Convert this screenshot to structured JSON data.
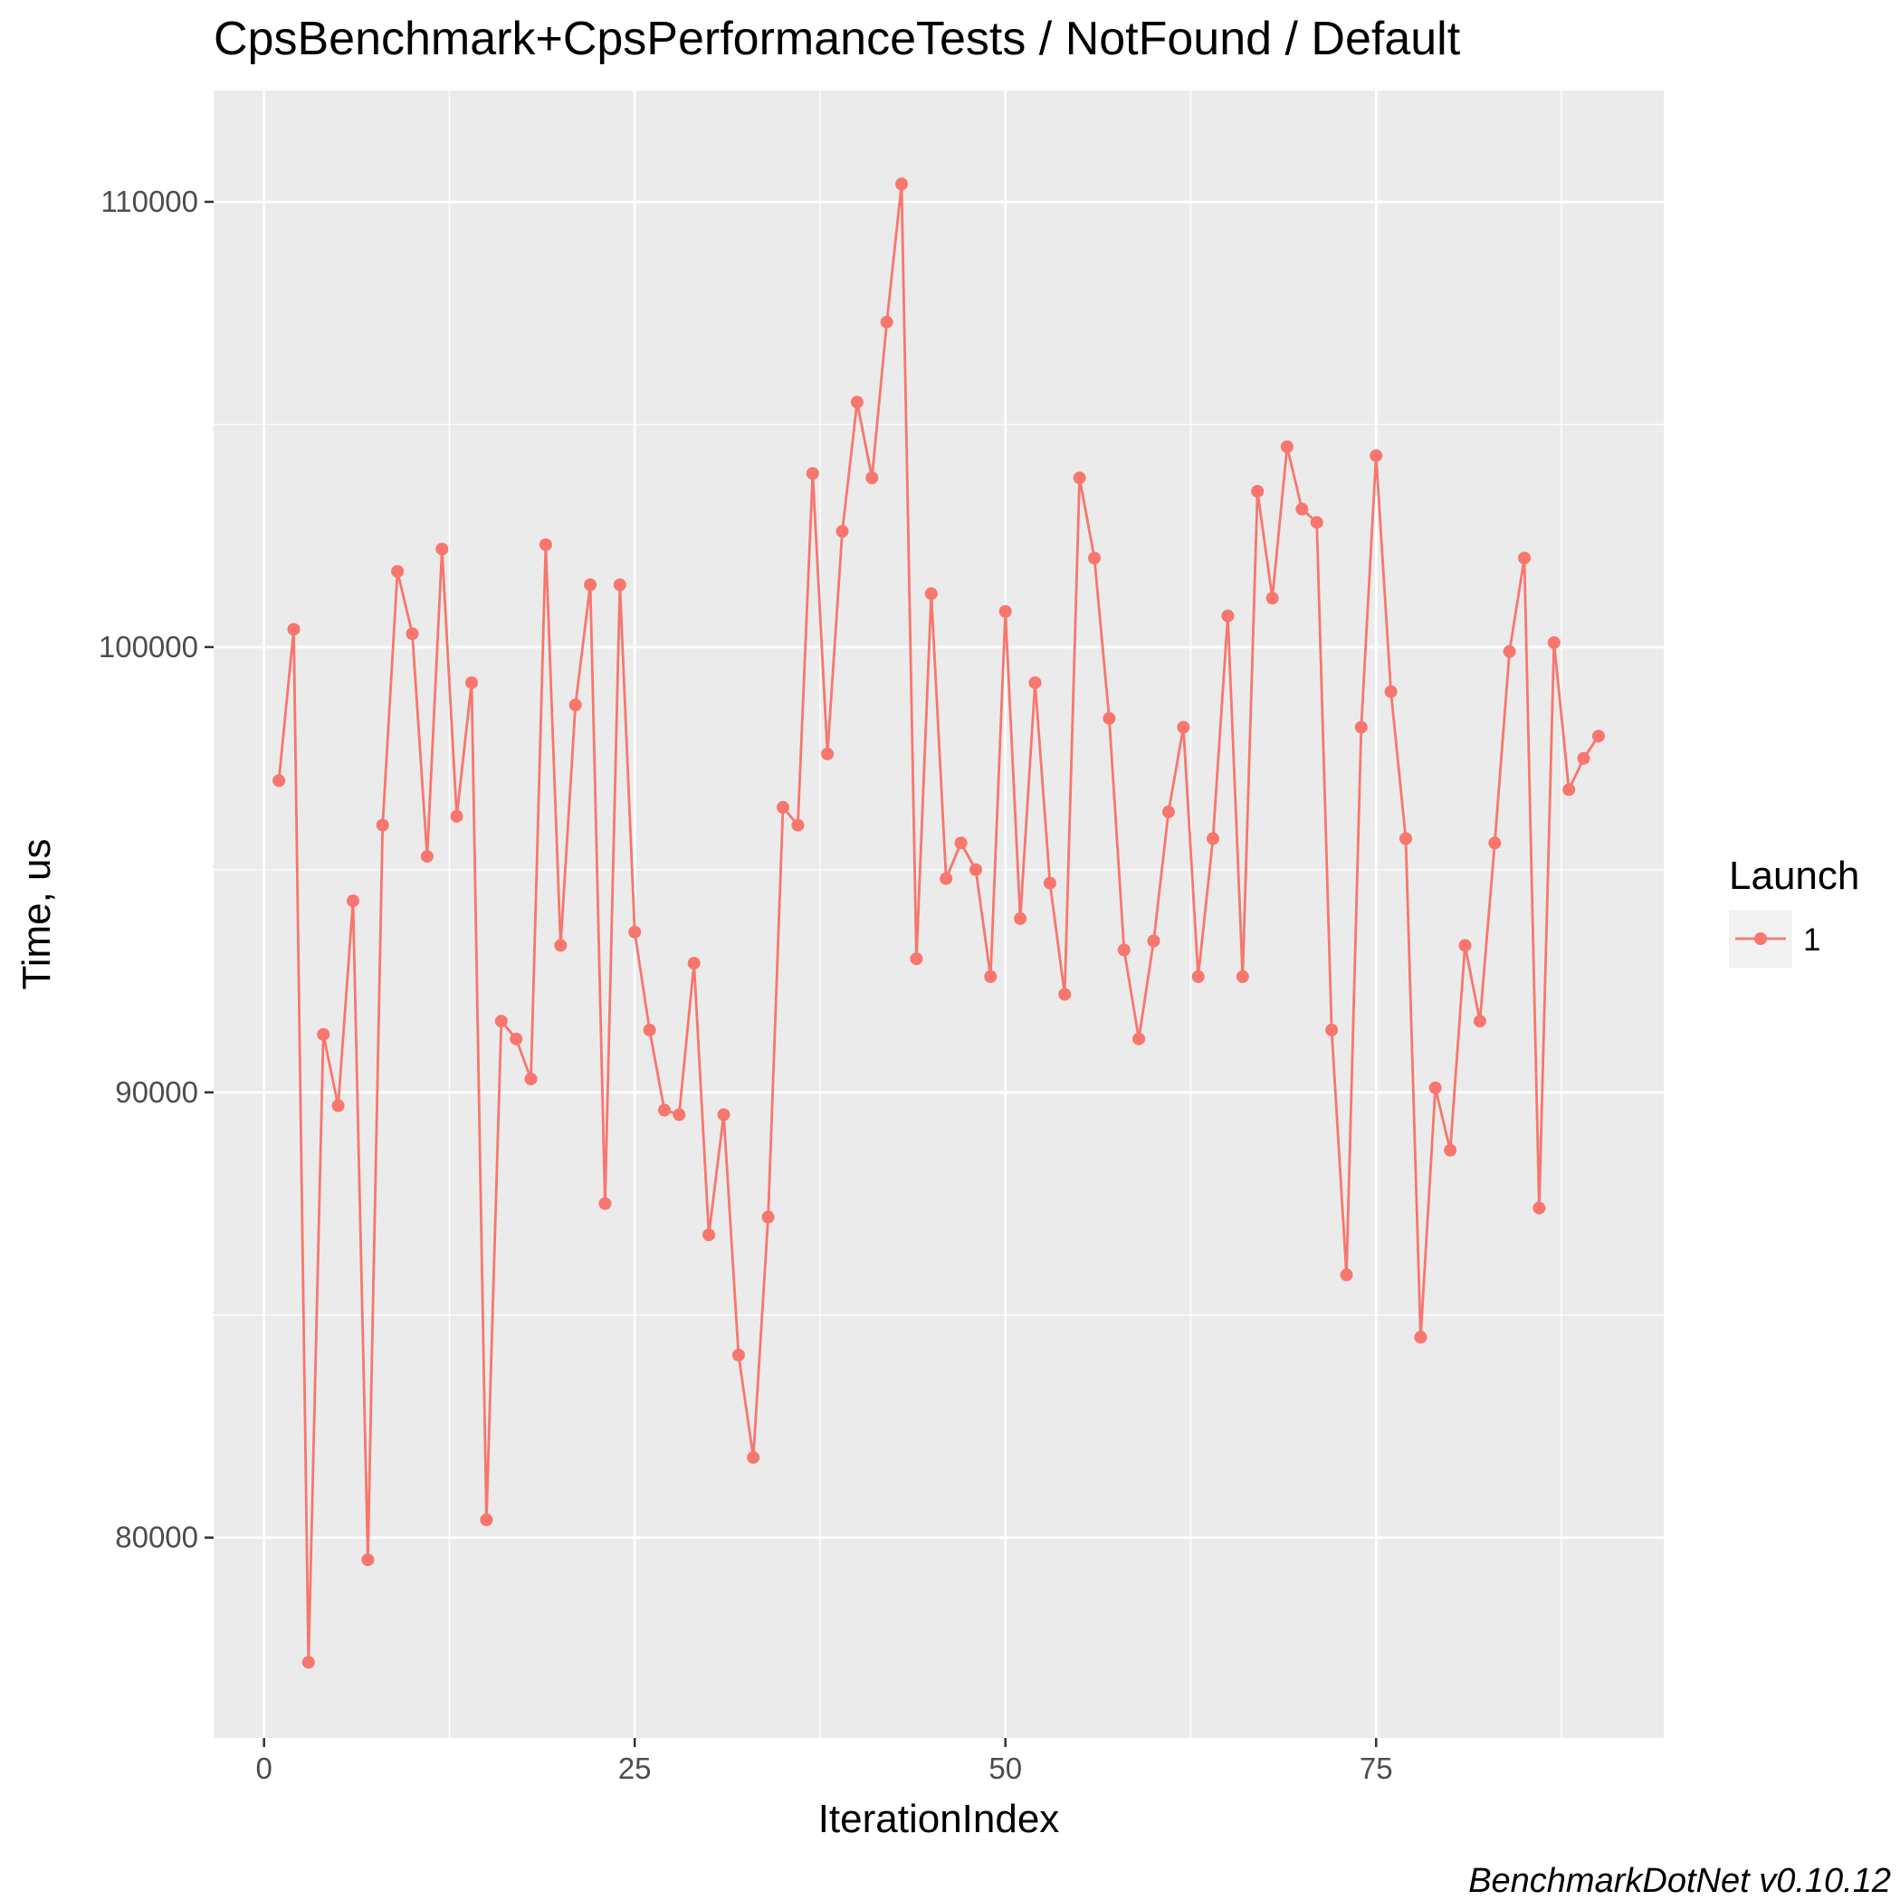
{
  "chart_data": {
    "type": "line",
    "title": "CpsBenchmark+CpsPerformanceTests / NotFound / Default",
    "xlabel": "IterationIndex",
    "ylabel": "Time, us",
    "xlim": [
      -3.4,
      94.4
    ],
    "ylim": [
      75500,
      112500
    ],
    "x_ticks": [
      0,
      25,
      50,
      75
    ],
    "x_tick_labels": [
      "0",
      "25",
      "50",
      "75"
    ],
    "y_ticks": [
      80000,
      90000,
      100000,
      110000
    ],
    "y_tick_labels": [
      "80000",
      "90000",
      "100000",
      "110000"
    ],
    "grid": true,
    "legend": {
      "title": "Launch",
      "position": "right",
      "entries": [
        "1"
      ]
    },
    "caption": "BenchmarkDotNet v0.10.12",
    "colors": {
      "series": "#F8766D",
      "panel": "#EBEBEB",
      "grid": "#FFFFFF",
      "tick": "#333333"
    },
    "series": [
      {
        "name": "1",
        "x": [
          1,
          2,
          3,
          4,
          5,
          6,
          7,
          8,
          9,
          10,
          11,
          12,
          13,
          14,
          15,
          16,
          17,
          18,
          19,
          20,
          21,
          22,
          23,
          24,
          25,
          26,
          27,
          28,
          29,
          30,
          31,
          32,
          33,
          34,
          35,
          36,
          37,
          38,
          39,
          40,
          41,
          42,
          43,
          44,
          45,
          46,
          47,
          48,
          49,
          50,
          51,
          52,
          53,
          54,
          55,
          56,
          57,
          58,
          59,
          60,
          61,
          62,
          63,
          64,
          65,
          66,
          67,
          68,
          69,
          70,
          71,
          72,
          73,
          74,
          75,
          76,
          77,
          78,
          79,
          80,
          81,
          82,
          83,
          84,
          85,
          86,
          87,
          88,
          89,
          90
        ],
        "values": [
          97000,
          100400,
          77200,
          91300,
          89700,
          94300,
          79500,
          96000,
          101700,
          100300,
          95300,
          102200,
          96200,
          99200,
          80400,
          91600,
          91200,
          90300,
          102300,
          93300,
          98700,
          101400,
          87500,
          101400,
          93600,
          91400,
          89600,
          89500,
          92900,
          86800,
          89500,
          84100,
          81800,
          87200,
          96400,
          96000,
          103900,
          97600,
          102600,
          105500,
          103800,
          107300,
          110400,
          93000,
          101200,
          94800,
          95600,
          95000,
          92600,
          100800,
          93900,
          99200,
          94700,
          92200,
          103800,
          102000,
          98400,
          93200,
          91200,
          93400,
          96300,
          98200,
          92600,
          95700,
          100700,
          92600,
          103500,
          101100,
          104500,
          103100,
          102800,
          91400,
          85900,
          98200,
          104300,
          99000,
          95700,
          84500,
          90100,
          88700,
          93300,
          91600,
          95600,
          99900,
          102000,
          87400,
          100100,
          96800,
          97500,
          98000
        ]
      }
    ]
  }
}
